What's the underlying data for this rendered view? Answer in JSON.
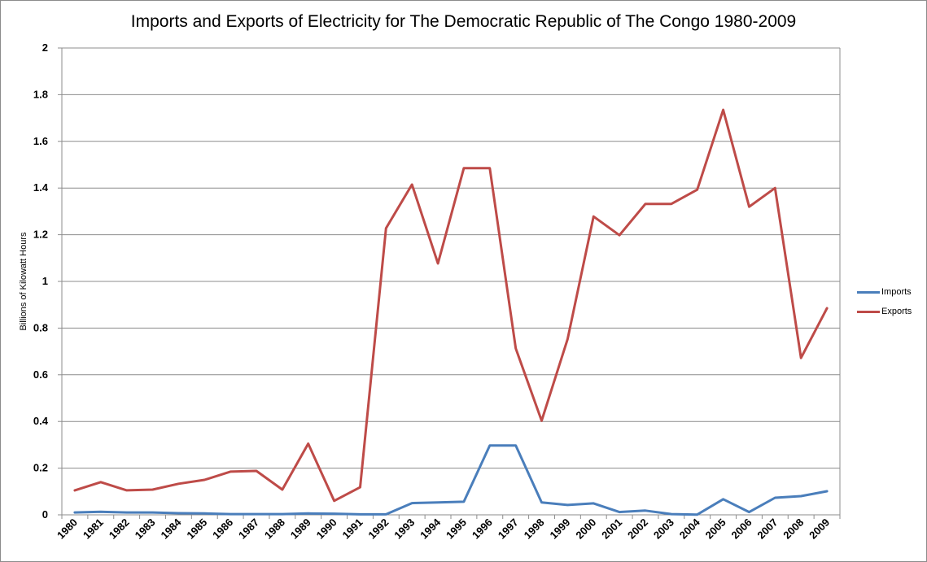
{
  "chart_data": {
    "type": "line",
    "title": "Imports and Exports of Electricity for The Democratic Republic of The Congo 1980-2009",
    "ylabel": "Billions of Kilowatt Hours",
    "xlabel": "",
    "categories": [
      "1980",
      "1981",
      "1982",
      "1983",
      "1984",
      "1985",
      "1986",
      "1987",
      "1988",
      "1989",
      "1990",
      "1991",
      "1992",
      "1993",
      "1994",
      "1995",
      "1996",
      "1997",
      "1998",
      "1999",
      "2000",
      "2001",
      "2002",
      "2003",
      "2004",
      "2005",
      "2006",
      "2007",
      "2008",
      "2009"
    ],
    "ylim": [
      0,
      2
    ],
    "yticks": [
      "0",
      "0.2",
      "0.4",
      "0.6",
      "0.8",
      "1",
      "1.2",
      "1.4",
      "1.6",
      "1.8",
      "2"
    ],
    "grid": true,
    "legend_position": "right",
    "series": [
      {
        "name": "Imports",
        "color": "#4a7ebb",
        "values": [
          0.01,
          0.013,
          0.01,
          0.01,
          0.007,
          0.006,
          0.003,
          0.003,
          0.003,
          0.006,
          0.005,
          0.002,
          0.002,
          0.05,
          0.053,
          0.056,
          0.297,
          0.297,
          0.053,
          0.042,
          0.049,
          0.012,
          0.018,
          0.003,
          0.001,
          0.067,
          0.012,
          0.073,
          0.08,
          0.101
        ]
      },
      {
        "name": "Exports",
        "color": "#be4b48",
        "values": [
          0.105,
          0.14,
          0.105,
          0.108,
          0.133,
          0.15,
          0.185,
          0.188,
          0.108,
          0.305,
          0.06,
          0.118,
          1.228,
          1.415,
          1.077,
          1.485,
          1.485,
          0.713,
          0.403,
          0.753,
          1.278,
          1.198,
          1.332,
          1.332,
          1.393,
          1.735,
          1.32,
          1.4,
          0.672,
          0.885
        ]
      }
    ]
  }
}
